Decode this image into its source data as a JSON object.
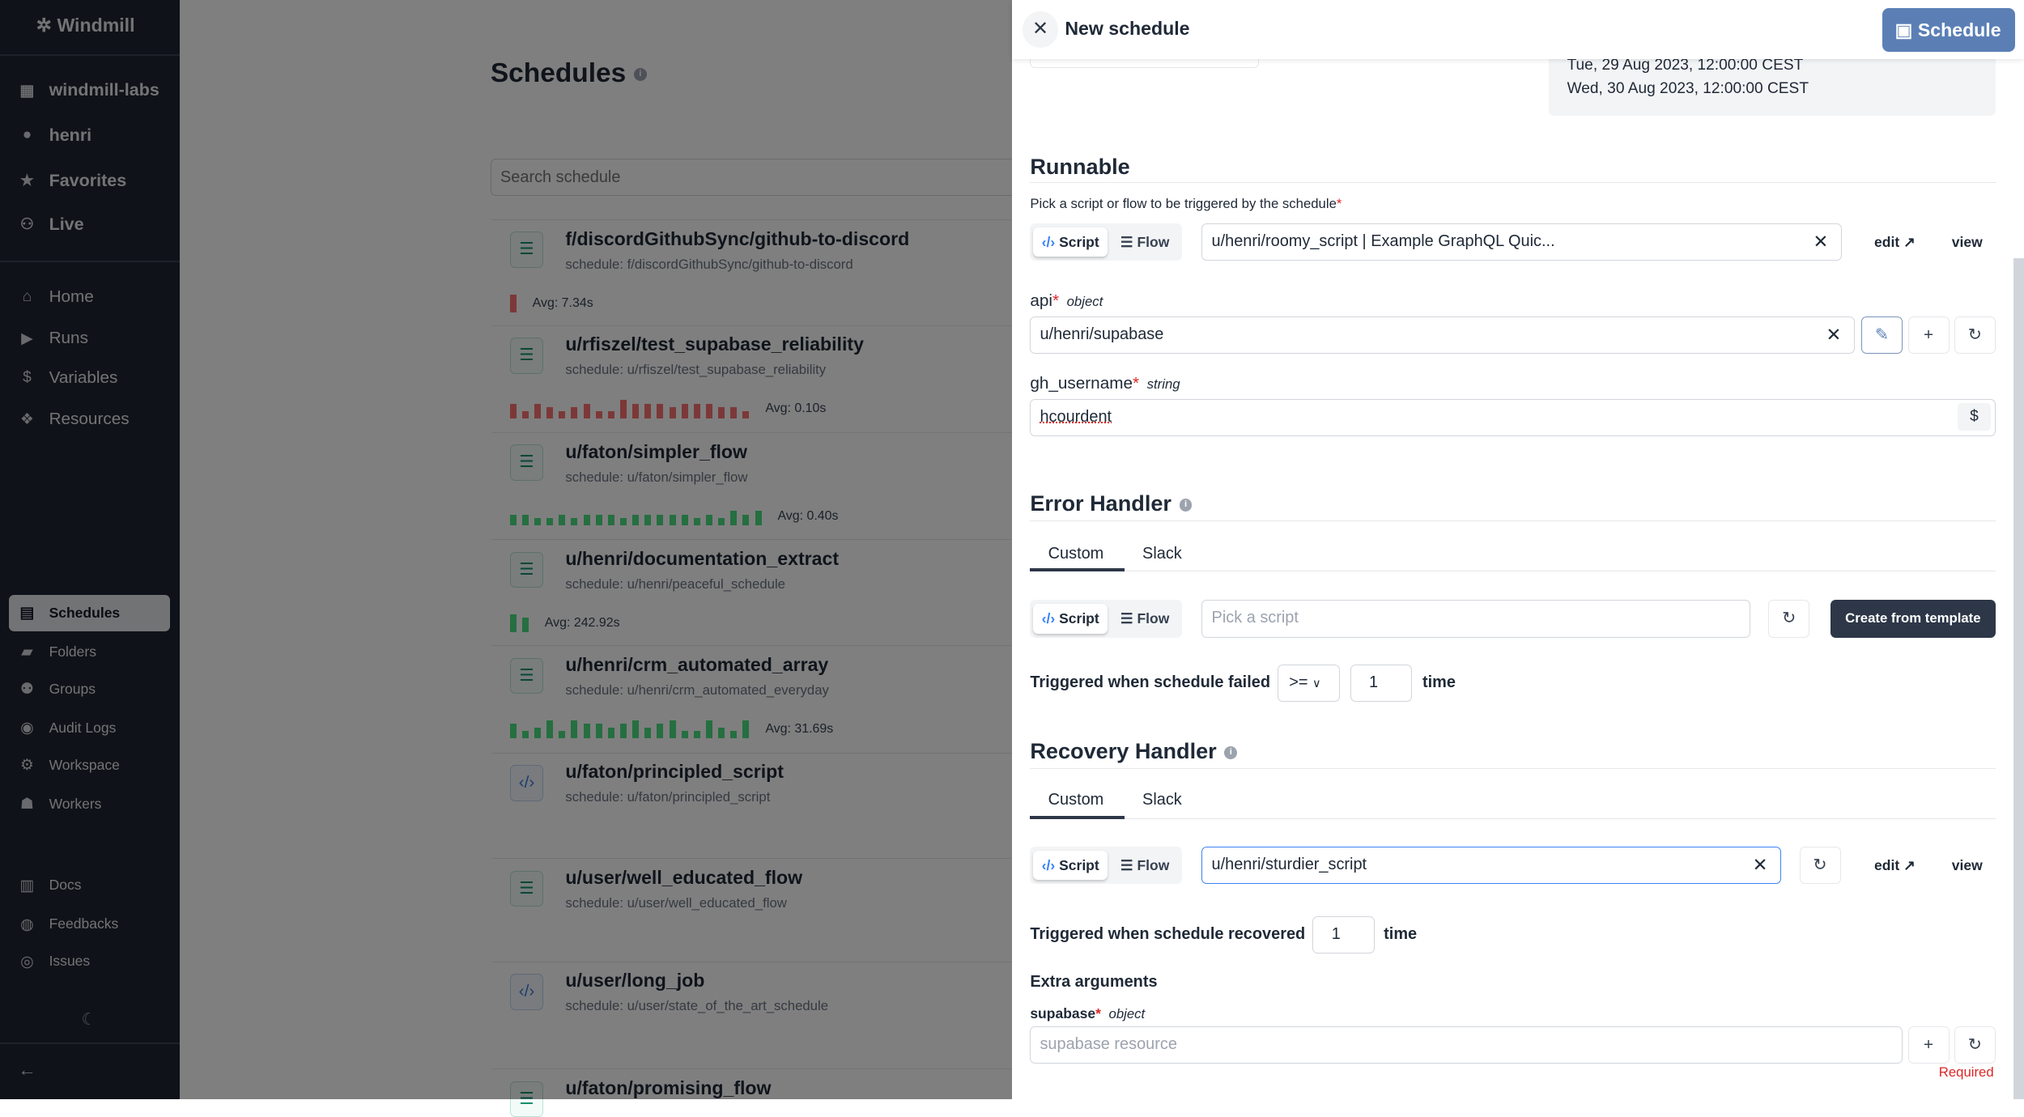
{
  "sidebar": {
    "brand": "Windmill",
    "top_items": [
      {
        "label": "windmill-labs",
        "icon": "building-icon"
      },
      {
        "label": "henri",
        "icon": "user-icon"
      },
      {
        "label": "Favorites",
        "icon": "star-icon"
      },
      {
        "label": "Live",
        "icon": "users-icon"
      }
    ],
    "main_items": [
      {
        "label": "Home",
        "icon": "home-icon"
      },
      {
        "label": "Runs",
        "icon": "play-icon"
      },
      {
        "label": "Variables",
        "icon": "dollar-icon"
      },
      {
        "label": "Resources",
        "icon": "boxes-icon"
      }
    ],
    "secondary_items": [
      {
        "label": "Schedules",
        "icon": "calendar-icon",
        "selected": true
      },
      {
        "label": "Folders",
        "icon": "folder-icon"
      },
      {
        "label": "Groups",
        "icon": "group-icon"
      },
      {
        "label": "Audit Logs",
        "icon": "eye-icon"
      },
      {
        "label": "Workspace",
        "icon": "gear-icon"
      },
      {
        "label": "Workers",
        "icon": "robot-icon"
      }
    ],
    "bottom_items": [
      {
        "label": "Docs",
        "icon": "book-icon"
      },
      {
        "label": "Feedbacks",
        "icon": "discord-icon"
      },
      {
        "label": "Issues",
        "icon": "github-icon"
      }
    ]
  },
  "main": {
    "title": "Schedules",
    "search_placeholder": "Search schedule",
    "schedules": [
      {
        "title": "f/discordGithubSync/github-to-discord",
        "sub": "schedule: f/discordGithubSync/github-to-discord",
        "kind": "flow",
        "avg": "Avg: 7.34s",
        "status": "failure",
        "bars": [
          1
        ]
      },
      {
        "title": "u/rfiszel/test_supabase_reliability",
        "sub": "schedule: u/rfiszel/test_supabase_reliability",
        "kind": "flow",
        "avg": "Avg: 0.10s",
        "status": "failure",
        "bars": [
          0.8,
          0.4,
          0.8,
          0.6,
          0.4,
          0.6,
          0.8,
          0.4,
          0.4,
          1,
          0.8,
          0.8,
          0.8,
          0.6,
          0.8,
          0.8,
          0.8,
          0.6,
          0.6,
          0.4
        ]
      },
      {
        "title": "u/faton/simpler_flow",
        "sub": "schedule: u/faton/simpler_flow",
        "kind": "flow",
        "avg": "Avg: 0.40s",
        "status": "success",
        "bars": [
          0.6,
          0.6,
          0.4,
          0.4,
          0.6,
          0.4,
          0.6,
          0.6,
          0.6,
          0.4,
          0.6,
          0.6,
          0.6,
          0.6,
          0.6,
          0.4,
          0.6,
          0.4,
          0.8,
          0.6,
          0.8
        ]
      },
      {
        "title": "u/henri/documentation_extract",
        "sub": "schedule: u/henri/peaceful_schedule",
        "kind": "flow",
        "avg": "Avg: 242.92s",
        "status": "success",
        "bars": [
          1,
          0.8
        ]
      },
      {
        "title": "u/henri/crm_automated_array",
        "sub": "schedule: u/henri/crm_automated_everyday",
        "kind": "flow",
        "avg": "Avg: 31.69s",
        "status": "success",
        "bars": [
          0.8,
          0.4,
          0.6,
          1,
          0.4,
          1,
          0.8,
          0.8,
          0.6,
          0.8,
          1,
          0.6,
          0.8,
          1,
          0.4,
          0.4,
          1,
          0.6,
          0.4,
          1
        ]
      },
      {
        "title": "u/faton/principled_script",
        "sub": "schedule: u/faton/principled_script",
        "kind": "script",
        "avg": "",
        "status": "",
        "bars": []
      },
      {
        "title": "u/user/well_educated_flow",
        "sub": "schedule: u/user/well_educated_flow",
        "kind": "flow",
        "avg": "",
        "status": "",
        "bars": []
      },
      {
        "title": "u/user/long_job",
        "sub": "schedule: u/user/state_of_the_art_schedule",
        "kind": "script",
        "avg": "",
        "status": "",
        "bars": []
      },
      {
        "title": "u/faton/promising_flow",
        "sub": "",
        "kind": "flow",
        "avg": "",
        "status": "",
        "bars": []
      }
    ]
  },
  "drawer": {
    "title": "New schedule",
    "save_label": "Schedule",
    "upcoming": [
      "Tue, 29 Aug 2023, 12:00:00 CEST",
      "Wed, 30 Aug 2023, 12:00:00 CEST"
    ],
    "runnable": {
      "heading": "Runnable",
      "description": "Pick a script or flow to be triggered by the schedule",
      "script_label": "Script",
      "flow_label": "Flow",
      "value": "u/henri/roomy_script | Example GraphQL Quic...",
      "edit_label": "edit",
      "view_label": "view"
    },
    "args": [
      {
        "name": "api",
        "type": "object",
        "value": "u/henri/supabase"
      },
      {
        "name": "gh_username",
        "type": "string",
        "value": "hcourdent"
      }
    ],
    "error_handler": {
      "heading": "Error Handler",
      "tabs": [
        "Custom",
        "Slack"
      ],
      "placeholder": "Pick a script",
      "create_label": "Create from template",
      "trigger_label": "Triggered when schedule failed",
      "operator": ">=",
      "times": "1",
      "time_label": "time"
    },
    "recovery_handler": {
      "heading": "Recovery Handler",
      "tabs": [
        "Custom",
        "Slack"
      ],
      "value": "u/henri/sturdier_script",
      "trigger_label": "Triggered when schedule recovered",
      "times": "1",
      "time_label": "time",
      "extra_heading": "Extra arguments",
      "extra_arg_name": "supabase",
      "extra_arg_type": "object",
      "extra_placeholder": "supabase resource",
      "required_label": "Required"
    }
  },
  "colors": {
    "success": "#4ade80",
    "failure": "#f87171",
    "primary": "#3b82f6",
    "dark_button": "#2d3748"
  }
}
